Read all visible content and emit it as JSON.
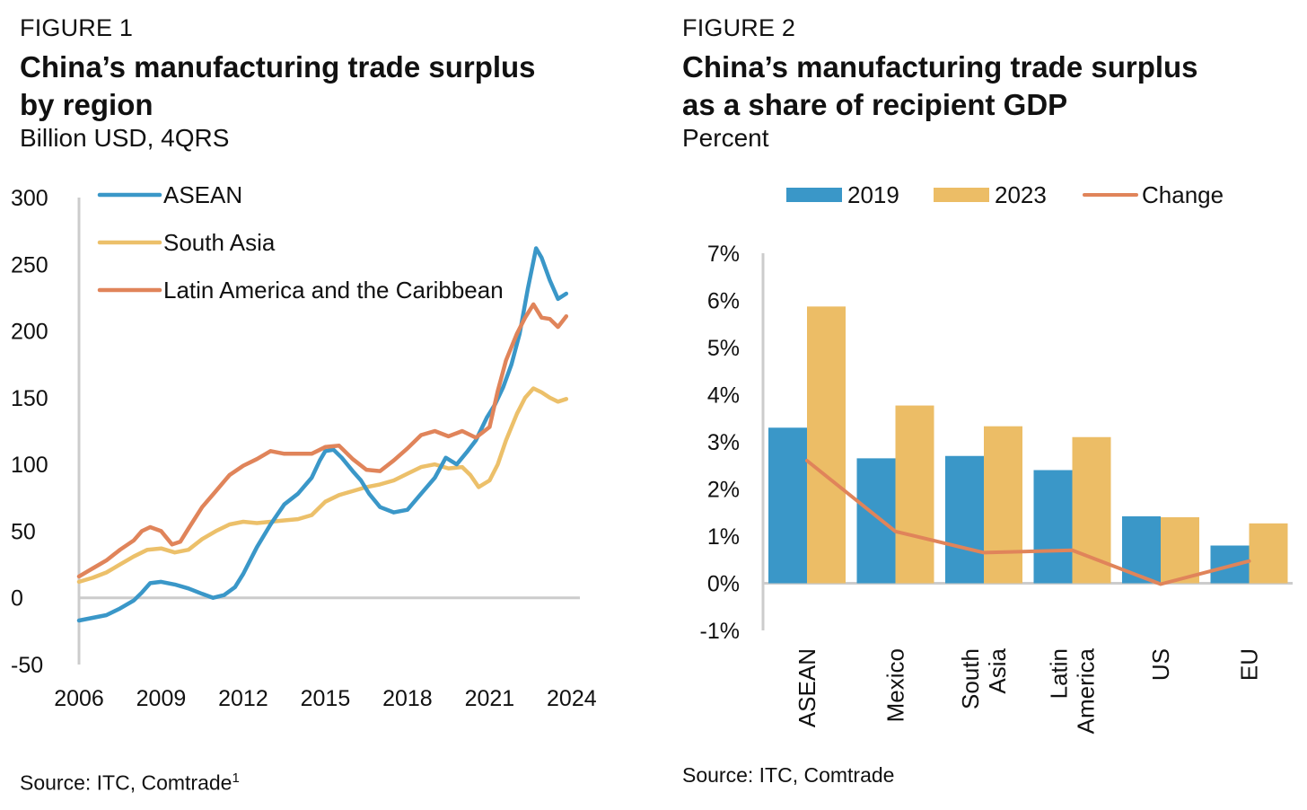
{
  "figure1": {
    "label": "FIGURE 1",
    "title_line1": "China’s manufacturing trade surplus",
    "title_line2": "by region",
    "subtitle": "Billion USD, 4QRS",
    "source": "Source: ITC, Comtrade",
    "source_sup": "1"
  },
  "figure2": {
    "label": "FIGURE 2",
    "title_line1": "China’s manufacturing trade surplus",
    "title_line2": "as a share of recipient GDP",
    "subtitle": "Percent",
    "source": "Source: ITC, Comtrade"
  },
  "colors": {
    "asean": "#3a97c8",
    "south_asia": "#ecc06a",
    "latam": "#e0845a",
    "bar2019": "#3a97c8",
    "bar2023": "#ecbd66",
    "change": "#e0845a",
    "axis": "#cccccc"
  },
  "chart_data": [
    {
      "type": "line",
      "legend_placement": "top-left",
      "grid": false,
      "xlim": [
        2006,
        2024.3
      ],
      "ylim": [
        -50,
        300
      ],
      "xticks": [
        "2006",
        "2009",
        "2012",
        "2015",
        "2018",
        "2021",
        "2024"
      ],
      "yticks": [
        "300",
        "250",
        "200",
        "150",
        "100",
        "50",
        "0",
        "-50"
      ],
      "series": [
        {
          "name": "ASEAN",
          "points": [
            [
              2006,
              -17
            ],
            [
              2006.5,
              -15
            ],
            [
              2007,
              -13
            ],
            [
              2007.5,
              -8
            ],
            [
              2008,
              -2
            ],
            [
              2008.3,
              4
            ],
            [
              2008.6,
              11
            ],
            [
              2009,
              12
            ],
            [
              2009.5,
              10
            ],
            [
              2010,
              7
            ],
            [
              2010.5,
              3
            ],
            [
              2010.9,
              0
            ],
            [
              2011.3,
              2
            ],
            [
              2011.7,
              8
            ],
            [
              2012,
              18
            ],
            [
              2012.5,
              38
            ],
            [
              2013,
              55
            ],
            [
              2013.5,
              70
            ],
            [
              2014,
              78
            ],
            [
              2014.5,
              90
            ],
            [
              2014.8,
              103
            ],
            [
              2015,
              110
            ],
            [
              2015.3,
              111
            ],
            [
              2015.6,
              105
            ],
            [
              2016,
              95
            ],
            [
              2016.3,
              88
            ],
            [
              2016.6,
              78
            ],
            [
              2017,
              68
            ],
            [
              2017.5,
              64
            ],
            [
              2018,
              66
            ],
            [
              2018.5,
              78
            ],
            [
              2019,
              90
            ],
            [
              2019.4,
              105
            ],
            [
              2019.8,
              100
            ],
            [
              2020.2,
              110
            ],
            [
              2020.5,
              118
            ],
            [
              2020.9,
              135
            ],
            [
              2021.2,
              145
            ],
            [
              2021.5,
              158
            ],
            [
              2021.8,
              175
            ],
            [
              2022.1,
              198
            ],
            [
              2022.4,
              232
            ],
            [
              2022.7,
              262
            ],
            [
              2022.9,
              255
            ],
            [
              2023.2,
              238
            ],
            [
              2023.5,
              224
            ],
            [
              2023.8,
              228
            ]
          ]
        },
        {
          "name": "South Asia",
          "points": [
            [
              2006,
              12
            ],
            [
              2006.5,
              15
            ],
            [
              2007,
              19
            ],
            [
              2007.5,
              25
            ],
            [
              2008,
              31
            ],
            [
              2008.5,
              36
            ],
            [
              2009,
              37
            ],
            [
              2009.5,
              34
            ],
            [
              2010,
              36
            ],
            [
              2010.5,
              44
            ],
            [
              2011,
              50
            ],
            [
              2011.5,
              55
            ],
            [
              2012,
              57
            ],
            [
              2012.5,
              56
            ],
            [
              2013,
              57
            ],
            [
              2013.5,
              58
            ],
            [
              2014,
              59
            ],
            [
              2014.5,
              62
            ],
            [
              2015,
              72
            ],
            [
              2015.5,
              77
            ],
            [
              2016,
              80
            ],
            [
              2016.5,
              83
            ],
            [
              2017,
              85
            ],
            [
              2017.5,
              88
            ],
            [
              2018,
              93
            ],
            [
              2018.5,
              98
            ],
            [
              2019,
              100
            ],
            [
              2019.5,
              97
            ],
            [
              2020,
              98
            ],
            [
              2020.3,
              92
            ],
            [
              2020.6,
              83
            ],
            [
              2021,
              88
            ],
            [
              2021.3,
              100
            ],
            [
              2021.6,
              118
            ],
            [
              2022,
              138
            ],
            [
              2022.3,
              150
            ],
            [
              2022.6,
              157
            ],
            [
              2022.9,
              154
            ],
            [
              2023.2,
              150
            ],
            [
              2023.5,
              147
            ],
            [
              2023.8,
              149
            ]
          ]
        },
        {
          "name": "Latin America and the Caribbean",
          "points": [
            [
              2006,
              16
            ],
            [
              2006.5,
              22
            ],
            [
              2007,
              28
            ],
            [
              2007.5,
              36
            ],
            [
              2008,
              43
            ],
            [
              2008.3,
              50
            ],
            [
              2008.6,
              53
            ],
            [
              2009,
              50
            ],
            [
              2009.4,
              40
            ],
            [
              2009.7,
              42
            ],
            [
              2010,
              52
            ],
            [
              2010.5,
              68
            ],
            [
              2011,
              80
            ],
            [
              2011.5,
              92
            ],
            [
              2012,
              99
            ],
            [
              2012.5,
              104
            ],
            [
              2013,
              110
            ],
            [
              2013.5,
              108
            ],
            [
              2014,
              108
            ],
            [
              2014.5,
              108
            ],
            [
              2015,
              113
            ],
            [
              2015.5,
              114
            ],
            [
              2016,
              104
            ],
            [
              2016.5,
              96
            ],
            [
              2017,
              95
            ],
            [
              2017.5,
              103
            ],
            [
              2018,
              112
            ],
            [
              2018.5,
              122
            ],
            [
              2019,
              125
            ],
            [
              2019.5,
              121
            ],
            [
              2020,
              125
            ],
            [
              2020.5,
              120
            ],
            [
              2021,
              128
            ],
            [
              2021.3,
              155
            ],
            [
              2021.6,
              178
            ],
            [
              2022,
              198
            ],
            [
              2022.3,
              210
            ],
            [
              2022.6,
              220
            ],
            [
              2022.9,
              210
            ],
            [
              2023.2,
              209
            ],
            [
              2023.5,
              203
            ],
            [
              2023.8,
              211
            ]
          ]
        }
      ]
    },
    {
      "type": "bar",
      "legend_placement": "top",
      "grid": false,
      "ylim": [
        -1,
        7
      ],
      "yticks": [
        "7%",
        "6%",
        "5%",
        "4%",
        "3%",
        "2%",
        "1%",
        "0%",
        "-1%"
      ],
      "categories": [
        "ASEAN",
        "Mexico",
        "South Asia",
        "Latin America",
        "US",
        "EU"
      ],
      "category_lines": [
        [
          "ASEAN"
        ],
        [
          "Mexico"
        ],
        [
          "South",
          "Asia"
        ],
        [
          "Latin",
          "America"
        ],
        [
          "US"
        ],
        [
          "EU"
        ]
      ],
      "series": [
        {
          "name": "2019",
          "kind": "bar",
          "values": [
            3.3,
            2.65,
            2.7,
            2.4,
            1.42,
            0.8
          ]
        },
        {
          "name": "2023",
          "kind": "bar",
          "values": [
            5.87,
            3.77,
            3.33,
            3.1,
            1.4,
            1.27
          ]
        },
        {
          "name": "Change",
          "kind": "line",
          "values": [
            2.6,
            1.1,
            0.65,
            0.7,
            -0.02,
            0.47
          ]
        }
      ]
    }
  ]
}
